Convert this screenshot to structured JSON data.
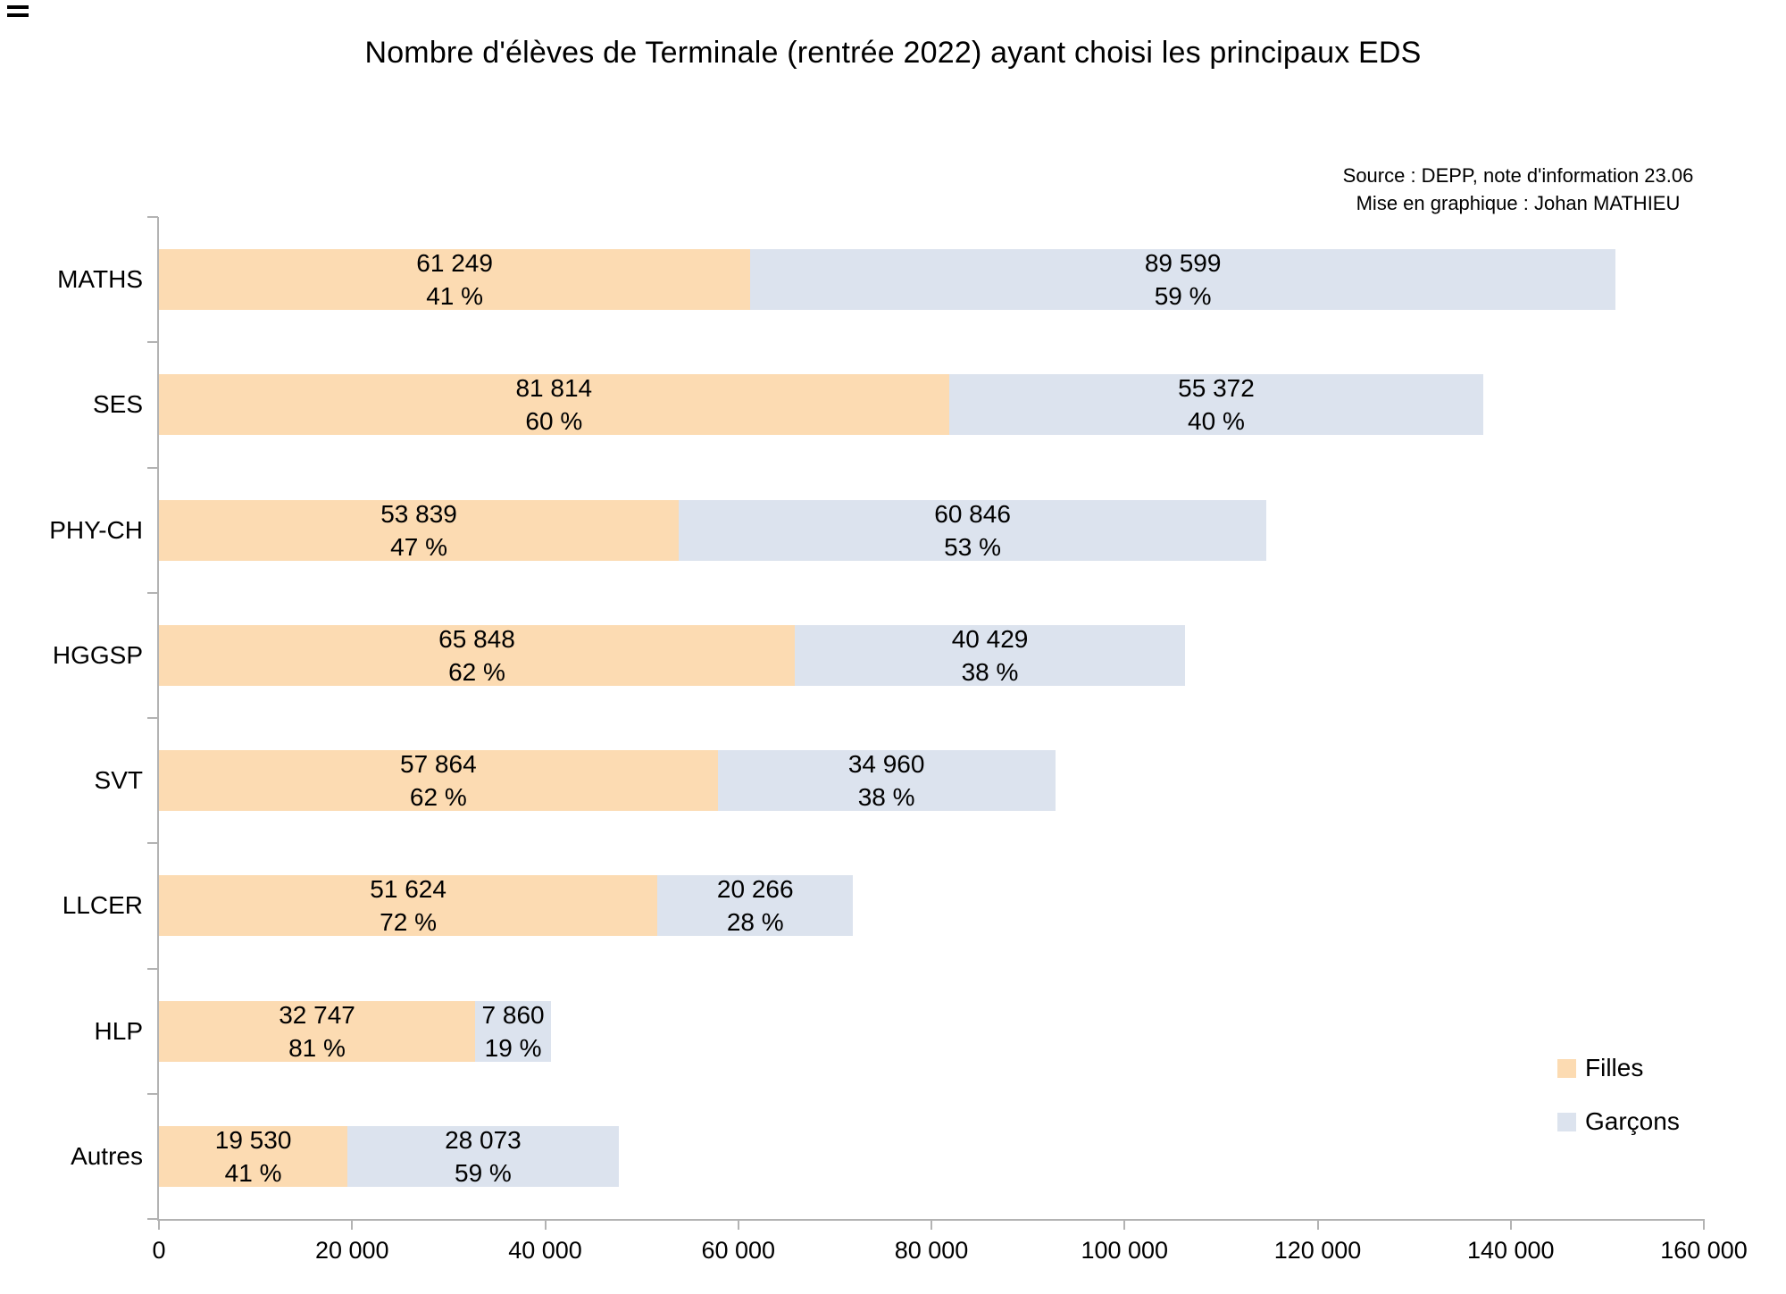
{
  "page": {
    "title": "Nombre d'élèves de Terminale (rentrée 2022) ayant choisi les principaux EDS",
    "source_line1": "Source : DEPP, note d'information 23.06",
    "source_line2": "Mise en graphique : Johan MATHIEU"
  },
  "colors": {
    "filles": "#FCDBB2",
    "garcons": "#DCE3EE",
    "axis": "#B3B3B3",
    "text": "#000000",
    "background": "#FFFFFF"
  },
  "chart_data": {
    "type": "bar",
    "orientation": "horizontal",
    "stacked": true,
    "title": "Nombre d'élèves de Terminale (rentrée 2022) ayant choisi les principaux EDS",
    "categories": [
      "MATHS",
      "SES",
      "PHY-CH",
      "HGGSP",
      "SVT",
      "LLCER",
      "HLP",
      "Autres"
    ],
    "series": [
      {
        "name": "Filles",
        "color": "#FCDBB2",
        "values": [
          61249,
          81814,
          53839,
          65848,
          57864,
          51624,
          32747,
          19530
        ],
        "value_labels": [
          "61 249",
          "81 814",
          "53 839",
          "65 848",
          "57 864",
          "51 624",
          "32 747",
          "19 530"
        ],
        "pct_labels": [
          "41 %",
          "60 %",
          "47 %",
          "62 %",
          "62 %",
          "72 %",
          "81 %",
          "41 %"
        ]
      },
      {
        "name": "Garçons",
        "color": "#DCE3EE",
        "values": [
          89599,
          55372,
          60846,
          40429,
          34960,
          20266,
          7860,
          28073
        ],
        "value_labels": [
          "89 599",
          "55 372",
          "60 846",
          "40 429",
          "34 960",
          "20 266",
          "7 860",
          "28 073"
        ],
        "pct_labels": [
          "59 %",
          "40 %",
          "53 %",
          "38 %",
          "38 %",
          "28 %",
          "19 %",
          "59 %"
        ]
      }
    ],
    "xlim": [
      0,
      160000
    ],
    "x_ticks": [
      0,
      20000,
      40000,
      60000,
      80000,
      100000,
      120000,
      140000,
      160000
    ],
    "x_tick_labels": [
      "0",
      "20 000",
      "40 000",
      "60 000",
      "80 000",
      "100 000",
      "120 000",
      "140 000",
      "160 000"
    ],
    "grid": false,
    "legend_position": "right-lower",
    "xlabel": "",
    "ylabel": ""
  }
}
